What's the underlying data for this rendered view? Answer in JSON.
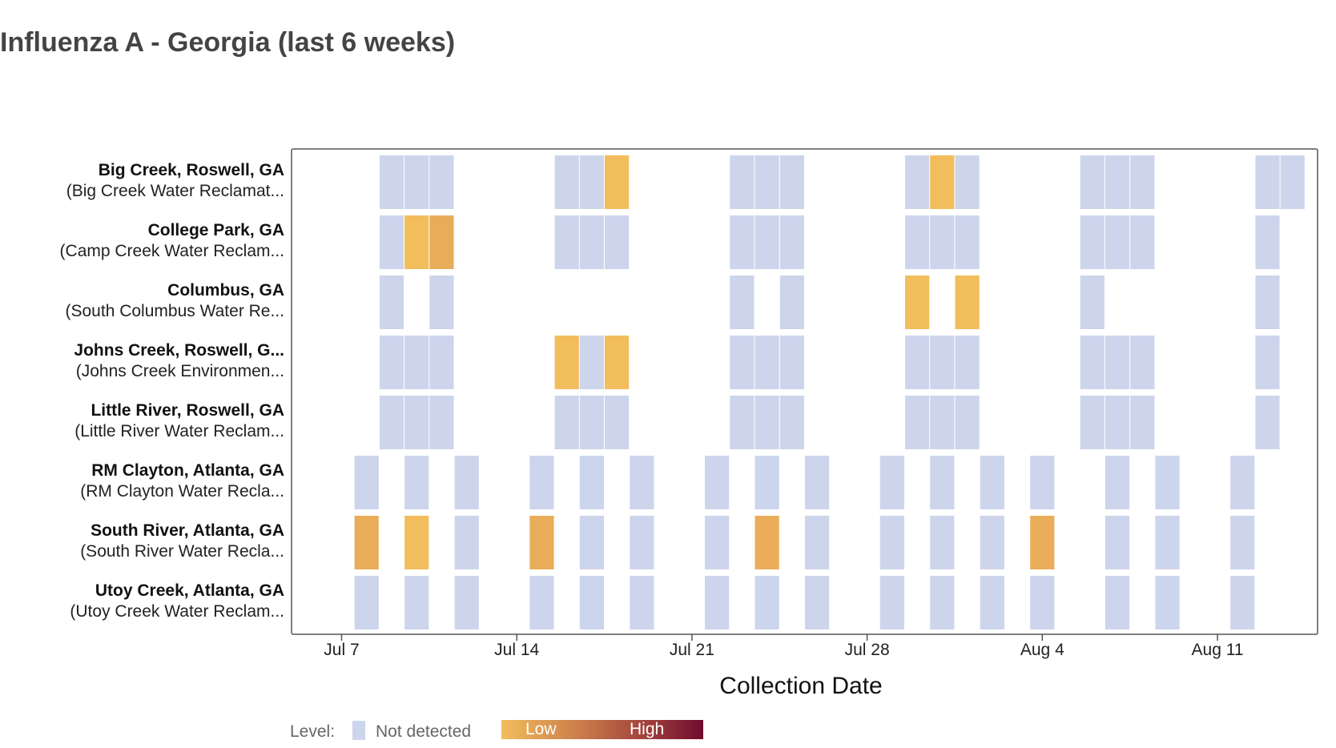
{
  "chart_data": {
    "type": "heatmap",
    "title": "Influenza A - Georgia (last 6 weeks)",
    "xlabel": "Collection Date",
    "ylabel": "",
    "x_ticks": [
      "Jul 7",
      "Jul 14",
      "Jul 21",
      "Jul 28",
      "Aug 4",
      "Aug 11"
    ],
    "x_range": [
      "2024-07-05",
      "2024-08-15"
    ],
    "legend": {
      "label": "Level:",
      "not_detected": "Not detected",
      "low": "Low",
      "high": "High",
      "position": "bottom-left"
    },
    "colors": {
      "not_detected": "#cdd5ec",
      "low": "#f2bd5c",
      "low_mid": "#e9ad5a",
      "high": "#6e0c2e",
      "frame": "#555555"
    },
    "rows": [
      {
        "site": "Big Creek, Roswell, GA",
        "plant": "(Big Creek Water Reclamat...",
        "samples": [
          {
            "date": "2024-07-09",
            "level": "not_detected"
          },
          {
            "date": "2024-07-10",
            "level": "not_detected"
          },
          {
            "date": "2024-07-11",
            "level": "not_detected"
          },
          {
            "date": "2024-07-16",
            "level": "not_detected"
          },
          {
            "date": "2024-07-17",
            "level": "not_detected"
          },
          {
            "date": "2024-07-18",
            "level": "low"
          },
          {
            "date": "2024-07-23",
            "level": "not_detected"
          },
          {
            "date": "2024-07-24",
            "level": "not_detected"
          },
          {
            "date": "2024-07-25",
            "level": "not_detected"
          },
          {
            "date": "2024-07-30",
            "level": "not_detected"
          },
          {
            "date": "2024-07-31",
            "level": "low"
          },
          {
            "date": "2024-08-01",
            "level": "not_detected"
          },
          {
            "date": "2024-08-06",
            "level": "not_detected"
          },
          {
            "date": "2024-08-07",
            "level": "not_detected"
          },
          {
            "date": "2024-08-08",
            "level": "not_detected"
          },
          {
            "date": "2024-08-13",
            "level": "not_detected"
          },
          {
            "date": "2024-08-14",
            "level": "not_detected"
          }
        ]
      },
      {
        "site": "College Park, GA",
        "plant": "(Camp Creek Water Reclam...",
        "samples": [
          {
            "date": "2024-07-09",
            "level": "not_detected"
          },
          {
            "date": "2024-07-10",
            "level": "low"
          },
          {
            "date": "2024-07-11",
            "level": "low_mid"
          },
          {
            "date": "2024-07-16",
            "level": "not_detected"
          },
          {
            "date": "2024-07-17",
            "level": "not_detected"
          },
          {
            "date": "2024-07-18",
            "level": "not_detected"
          },
          {
            "date": "2024-07-23",
            "level": "not_detected"
          },
          {
            "date": "2024-07-24",
            "level": "not_detected"
          },
          {
            "date": "2024-07-25",
            "level": "not_detected"
          },
          {
            "date": "2024-07-30",
            "level": "not_detected"
          },
          {
            "date": "2024-07-31",
            "level": "not_detected"
          },
          {
            "date": "2024-08-01",
            "level": "not_detected"
          },
          {
            "date": "2024-08-06",
            "level": "not_detected"
          },
          {
            "date": "2024-08-07",
            "level": "not_detected"
          },
          {
            "date": "2024-08-08",
            "level": "not_detected"
          },
          {
            "date": "2024-08-13",
            "level": "not_detected"
          }
        ]
      },
      {
        "site": "Columbus, GA",
        "plant": "(South Columbus Water Re...",
        "samples": [
          {
            "date": "2024-07-09",
            "level": "not_detected"
          },
          {
            "date": "2024-07-11",
            "level": "not_detected"
          },
          {
            "date": "2024-07-23",
            "level": "not_detected"
          },
          {
            "date": "2024-07-25",
            "level": "not_detected"
          },
          {
            "date": "2024-07-30",
            "level": "low"
          },
          {
            "date": "2024-08-01",
            "level": "low"
          },
          {
            "date": "2024-08-06",
            "level": "not_detected"
          },
          {
            "date": "2024-08-13",
            "level": "not_detected"
          }
        ]
      },
      {
        "site": "Johns Creek, Roswell, G...",
        "plant": "(Johns Creek Environmen...",
        "samples": [
          {
            "date": "2024-07-09",
            "level": "not_detected"
          },
          {
            "date": "2024-07-10",
            "level": "not_detected"
          },
          {
            "date": "2024-07-11",
            "level": "not_detected"
          },
          {
            "date": "2024-07-16",
            "level": "low"
          },
          {
            "date": "2024-07-17",
            "level": "not_detected"
          },
          {
            "date": "2024-07-18",
            "level": "low"
          },
          {
            "date": "2024-07-23",
            "level": "not_detected"
          },
          {
            "date": "2024-07-24",
            "level": "not_detected"
          },
          {
            "date": "2024-07-25",
            "level": "not_detected"
          },
          {
            "date": "2024-07-30",
            "level": "not_detected"
          },
          {
            "date": "2024-07-31",
            "level": "not_detected"
          },
          {
            "date": "2024-08-01",
            "level": "not_detected"
          },
          {
            "date": "2024-08-06",
            "level": "not_detected"
          },
          {
            "date": "2024-08-07",
            "level": "not_detected"
          },
          {
            "date": "2024-08-08",
            "level": "not_detected"
          },
          {
            "date": "2024-08-13",
            "level": "not_detected"
          }
        ]
      },
      {
        "site": "Little River, Roswell, GA",
        "plant": "(Little River Water Reclam...",
        "samples": [
          {
            "date": "2024-07-09",
            "level": "not_detected"
          },
          {
            "date": "2024-07-10",
            "level": "not_detected"
          },
          {
            "date": "2024-07-11",
            "level": "not_detected"
          },
          {
            "date": "2024-07-16",
            "level": "not_detected"
          },
          {
            "date": "2024-07-17",
            "level": "not_detected"
          },
          {
            "date": "2024-07-18",
            "level": "not_detected"
          },
          {
            "date": "2024-07-23",
            "level": "not_detected"
          },
          {
            "date": "2024-07-24",
            "level": "not_detected"
          },
          {
            "date": "2024-07-25",
            "level": "not_detected"
          },
          {
            "date": "2024-07-30",
            "level": "not_detected"
          },
          {
            "date": "2024-07-31",
            "level": "not_detected"
          },
          {
            "date": "2024-08-01",
            "level": "not_detected"
          },
          {
            "date": "2024-08-06",
            "level": "not_detected"
          },
          {
            "date": "2024-08-07",
            "level": "not_detected"
          },
          {
            "date": "2024-08-08",
            "level": "not_detected"
          },
          {
            "date": "2024-08-13",
            "level": "not_detected"
          }
        ]
      },
      {
        "site": "RM Clayton, Atlanta, GA",
        "plant": "(RM Clayton Water Recla...",
        "samples": [
          {
            "date": "2024-07-08",
            "level": "not_detected"
          },
          {
            "date": "2024-07-10",
            "level": "not_detected"
          },
          {
            "date": "2024-07-12",
            "level": "not_detected"
          },
          {
            "date": "2024-07-15",
            "level": "not_detected"
          },
          {
            "date": "2024-07-17",
            "level": "not_detected"
          },
          {
            "date": "2024-07-19",
            "level": "not_detected"
          },
          {
            "date": "2024-07-22",
            "level": "not_detected"
          },
          {
            "date": "2024-07-24",
            "level": "not_detected"
          },
          {
            "date": "2024-07-26",
            "level": "not_detected"
          },
          {
            "date": "2024-07-29",
            "level": "not_detected"
          },
          {
            "date": "2024-07-31",
            "level": "not_detected"
          },
          {
            "date": "2024-08-02",
            "level": "not_detected"
          },
          {
            "date": "2024-08-04",
            "level": "not_detected"
          },
          {
            "date": "2024-08-07",
            "level": "not_detected"
          },
          {
            "date": "2024-08-09",
            "level": "not_detected"
          },
          {
            "date": "2024-08-12",
            "level": "not_detected"
          }
        ]
      },
      {
        "site": "South River, Atlanta, GA",
        "plant": "(South River Water Recla...",
        "samples": [
          {
            "date": "2024-07-08",
            "level": "low_mid"
          },
          {
            "date": "2024-07-10",
            "level": "low"
          },
          {
            "date": "2024-07-12",
            "level": "not_detected"
          },
          {
            "date": "2024-07-15",
            "level": "low_mid"
          },
          {
            "date": "2024-07-17",
            "level": "not_detected"
          },
          {
            "date": "2024-07-19",
            "level": "not_detected"
          },
          {
            "date": "2024-07-22",
            "level": "not_detected"
          },
          {
            "date": "2024-07-24",
            "level": "low_mid"
          },
          {
            "date": "2024-07-26",
            "level": "not_detected"
          },
          {
            "date": "2024-07-29",
            "level": "not_detected"
          },
          {
            "date": "2024-07-31",
            "level": "not_detected"
          },
          {
            "date": "2024-08-02",
            "level": "not_detected"
          },
          {
            "date": "2024-08-04",
            "level": "low_mid"
          },
          {
            "date": "2024-08-07",
            "level": "not_detected"
          },
          {
            "date": "2024-08-09",
            "level": "not_detected"
          },
          {
            "date": "2024-08-12",
            "level": "not_detected"
          }
        ]
      },
      {
        "site": "Utoy Creek, Atlanta, GA",
        "plant": "(Utoy Creek Water Reclam...",
        "samples": [
          {
            "date": "2024-07-08",
            "level": "not_detected"
          },
          {
            "date": "2024-07-10",
            "level": "not_detected"
          },
          {
            "date": "2024-07-12",
            "level": "not_detected"
          },
          {
            "date": "2024-07-15",
            "level": "not_detected"
          },
          {
            "date": "2024-07-17",
            "level": "not_detected"
          },
          {
            "date": "2024-07-19",
            "level": "not_detected"
          },
          {
            "date": "2024-07-22",
            "level": "not_detected"
          },
          {
            "date": "2024-07-24",
            "level": "not_detected"
          },
          {
            "date": "2024-07-26",
            "level": "not_detected"
          },
          {
            "date": "2024-07-29",
            "level": "not_detected"
          },
          {
            "date": "2024-07-31",
            "level": "not_detected"
          },
          {
            "date": "2024-08-02",
            "level": "not_detected"
          },
          {
            "date": "2024-08-04",
            "level": "not_detected"
          },
          {
            "date": "2024-08-07",
            "level": "not_detected"
          },
          {
            "date": "2024-08-09",
            "level": "not_detected"
          },
          {
            "date": "2024-08-12",
            "level": "not_detected"
          }
        ]
      }
    ]
  }
}
